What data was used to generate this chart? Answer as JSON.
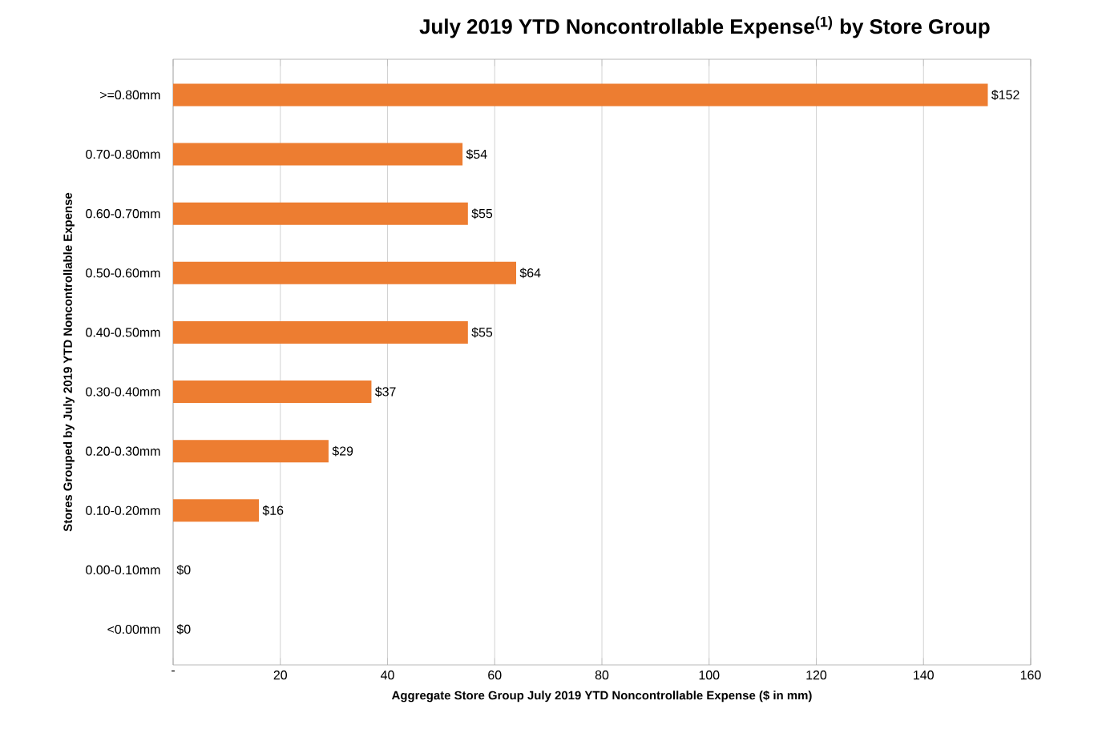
{
  "chart_data": {
    "type": "bar",
    "orientation": "horizontal",
    "title": "July 2019 YTD Noncontrollable Expense$^{(1)}$ by Store Group",
    "xlabel": "Aggregate Store Group July 2019 YTD Noncontrollable Expense ($ in mm)",
    "ylabel": "Stores Grouped by July 2019 YTD Noncontrollable Expense",
    "categories": [
      ">=0.80mm",
      "0.70-0.80mm",
      "0.60-0.70mm",
      "0.50-0.60mm",
      "0.40-0.50mm",
      "0.30-0.40mm",
      "0.20-0.30mm",
      "0.10-0.20mm",
      "0.00-0.10mm",
      "<0.00mm"
    ],
    "values": [
      152,
      54,
      55,
      64,
      55,
      37,
      29,
      16,
      0,
      0
    ],
    "value_labels": [
      "$152",
      "$54",
      "$55",
      "$64",
      "$55",
      "$37",
      "$29",
      "$16",
      "$0",
      "$0"
    ],
    "color": "#ed7d31",
    "xlim": [
      0,
      160
    ],
    "xticks": [
      {
        "value": 0,
        "label": "-"
      },
      20,
      40,
      60,
      80,
      100,
      120,
      140,
      160
    ],
    "grid": "x"
  }
}
